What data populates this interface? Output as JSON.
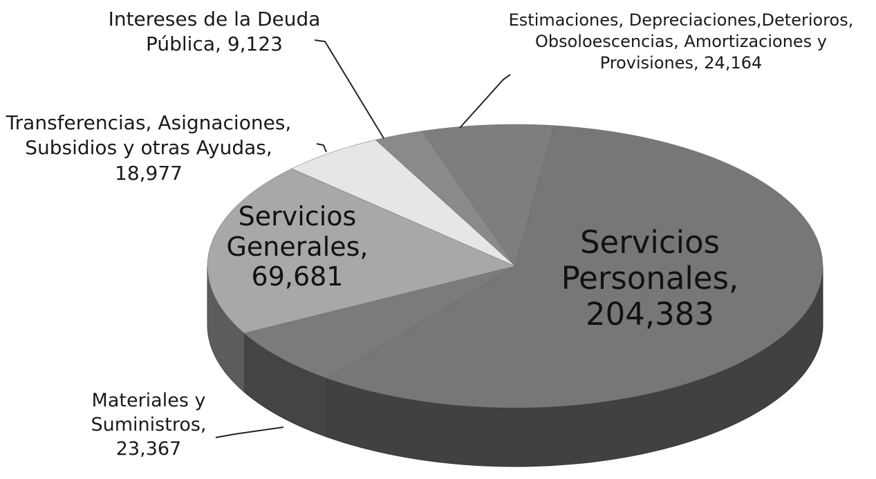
{
  "chart_data": {
    "type": "pie",
    "categories": [
      "Intereses de la Deuda Pública,",
      "Estimaciones, Depreciaciones,Deterioros, Obsoloescencias, Amortizaciones y Provisiones,",
      "Servicios Personales,",
      "Materiales y Suministros,",
      "Servicios Generales,",
      "Transferencias, Asignaciones, Subsidios y otras Ayudas,"
    ],
    "values": [
      9123,
      24164,
      204383,
      23367,
      69681,
      18977
    ],
    "value_labels": [
      "9,123",
      "24,164",
      "204,383",
      "23,367",
      "69,681",
      "18,977"
    ],
    "colors": [
      "#8a8a8a",
      "#7e7e7e",
      "#777777",
      "#7b7b7b",
      "#a8a8a8",
      "#e6e6e6"
    ]
  }
}
